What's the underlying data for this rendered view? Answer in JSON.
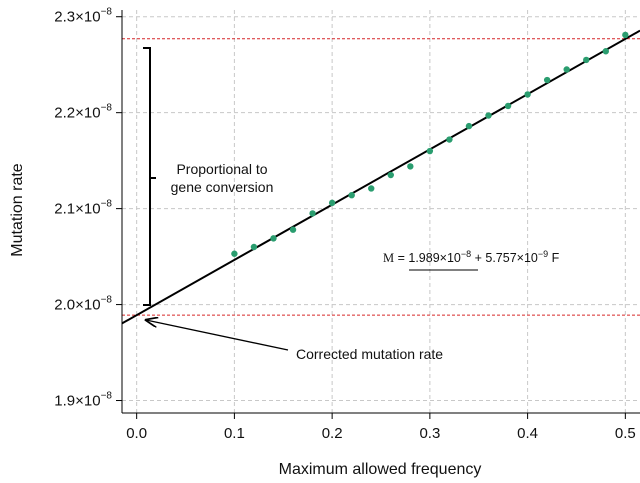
{
  "chart_data": {
    "type": "scatter",
    "xlabel": "Maximum allowed frequency",
    "ylabel": "Mutation rate",
    "xlim": [
      -0.015,
      0.515
    ],
    "ylim": [
      1.887e-08,
      2.307e-08
    ],
    "x_ticks": [
      "0.0",
      "0.1",
      "0.2",
      "0.3",
      "0.4",
      "0.5"
    ],
    "x_tick_values": [
      0.0,
      0.1,
      0.2,
      0.3,
      0.4,
      0.5
    ],
    "y_ticks": [
      {
        "value": 1.9e-08,
        "mantissa": "1.9",
        "exponent": "−8"
      },
      {
        "value": 2e-08,
        "mantissa": "2.0",
        "exponent": "−8"
      },
      {
        "value": 2.1e-08,
        "mantissa": "2.1",
        "exponent": "−8"
      },
      {
        "value": 2.2e-08,
        "mantissa": "2.2",
        "exponent": "−8"
      },
      {
        "value": 2.3e-08,
        "mantissa": "2.3",
        "exponent": "−8"
      }
    ],
    "grid": true,
    "point_color": "#2a9d6f",
    "fit_color": "#000000",
    "ref_line_color": "#d62728",
    "points": [
      {
        "x": 0.1,
        "y": 2.053e-08
      },
      {
        "x": 0.12,
        "y": 2.06e-08
      },
      {
        "x": 0.14,
        "y": 2.069e-08
      },
      {
        "x": 0.16,
        "y": 2.078e-08
      },
      {
        "x": 0.18,
        "y": 2.095e-08
      },
      {
        "x": 0.2,
        "y": 2.106e-08
      },
      {
        "x": 0.22,
        "y": 2.114e-08
      },
      {
        "x": 0.24,
        "y": 2.121e-08
      },
      {
        "x": 0.26,
        "y": 2.135e-08
      },
      {
        "x": 0.28,
        "y": 2.144e-08
      },
      {
        "x": 0.3,
        "y": 2.16e-08
      },
      {
        "x": 0.32,
        "y": 2.172e-08
      },
      {
        "x": 0.34,
        "y": 2.186e-08
      },
      {
        "x": 0.36,
        "y": 2.197e-08
      },
      {
        "x": 0.38,
        "y": 2.207e-08
      },
      {
        "x": 0.4,
        "y": 2.219e-08
      },
      {
        "x": 0.42,
        "y": 2.234e-08
      },
      {
        "x": 0.44,
        "y": 2.245e-08
      },
      {
        "x": 0.46,
        "y": 2.255e-08
      },
      {
        "x": 0.48,
        "y": 2.264e-08
      },
      {
        "x": 0.5,
        "y": 2.281e-08
      }
    ],
    "fit": {
      "intercept": 1.989e-08,
      "slope": 5.757e-09
    },
    "reference_lines": [
      {
        "y": 2.277e-08
      },
      {
        "y": 1.989e-08
      }
    ],
    "annotations": {
      "bracket_label_line1": "Proportional to",
      "bracket_label_line2": "gene conversion",
      "arrow_label": "Corrected mutation rate",
      "formula_lhs": "M",
      "formula_eq": " = ",
      "formula_term1_mantissa": "1.989×10",
      "formula_term1_exp": "−8",
      "formula_plus": " + 5.757×10",
      "formula_term2_exp": "−9",
      "formula_var": " F"
    }
  }
}
